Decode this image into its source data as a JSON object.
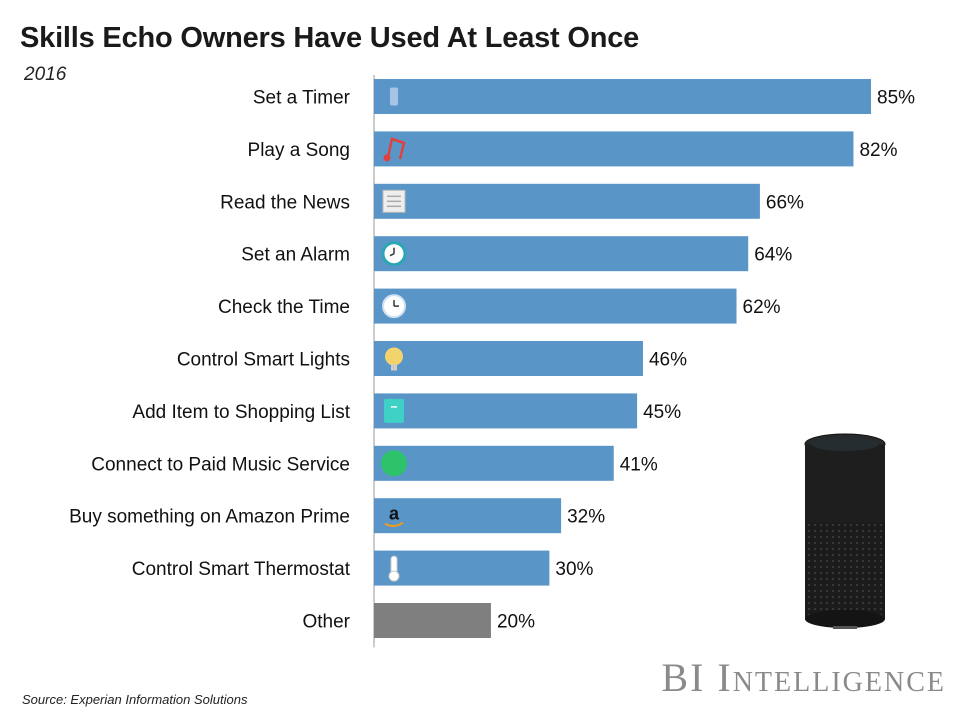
{
  "header": {
    "title": "Skills Echo Owners Have Used At Least Once",
    "subtitle": "2016"
  },
  "footer": {
    "source": "Source: Experian Information Solutions",
    "brand": "BI Intelligence"
  },
  "colors": {
    "bar": "#5a95c8",
    "bar_other": "#7f7f7f",
    "axis": "#999999"
  },
  "chart_data": {
    "type": "bar",
    "orientation": "horizontal",
    "title": "Skills Echo Owners Have Used At Least Once",
    "subtitle": "2016",
    "unit": "%",
    "xlim": [
      0,
      85
    ],
    "categories": [
      "Set a Timer",
      "Play a Song",
      "Read the News",
      "Set an Alarm",
      "Check the Time",
      "Control Smart Lights",
      "Add Item to Shopping List",
      "Connect to Paid Music Service",
      "Buy something on Amazon Prime",
      "Control Smart Thermostat",
      "Other"
    ],
    "values": [
      85,
      82,
      66,
      64,
      62,
      46,
      45,
      41,
      32,
      30,
      20
    ],
    "labels": [
      "85%",
      "82%",
      "66%",
      "64%",
      "62%",
      "46%",
      "45%",
      "41%",
      "32%",
      "30%",
      "20%"
    ],
    "icons": [
      "timer-icon",
      "music-note-icon",
      "newspaper-icon",
      "alarm-clock-icon",
      "clock-icon",
      "light-bulb-icon",
      "shopping-list-icon",
      "music-service-icon",
      "amazon-icon",
      "thermometer-icon",
      "none"
    ]
  }
}
